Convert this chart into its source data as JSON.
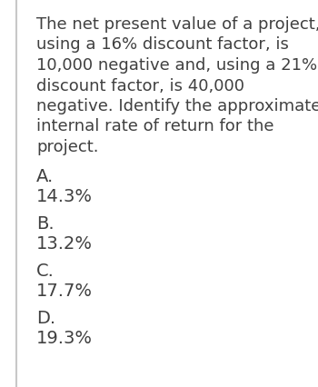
{
  "background_color": "#ffffff",
  "left_border_color": "#c8c8c8",
  "question_lines": [
    "The net present value of a project,",
    "using a 16% discount factor, is",
    "10,000 negative and, using a 21%",
    "discount factor, is 40,000",
    "negative. Identify the approximate",
    "internal rate of return for the",
    "project."
  ],
  "options": [
    {
      "label": "A.",
      "value": "14.3%"
    },
    {
      "label": "B.",
      "value": "13.2%"
    },
    {
      "label": "C.",
      "value": "17.7%"
    },
    {
      "label": "D.",
      "value": "19.3%"
    }
  ],
  "text_color": "#404040",
  "font_size_question": 13.0,
  "font_size_options": 14.0,
  "fig_width": 3.5,
  "fig_height": 4.26,
  "dpi": 100
}
